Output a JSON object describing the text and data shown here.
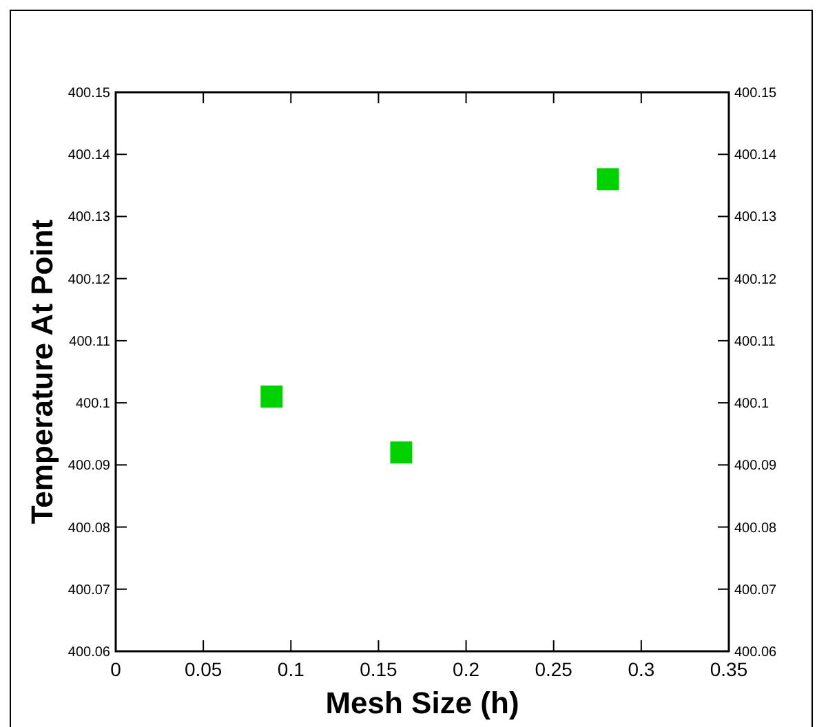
{
  "chart_data": {
    "type": "scatter",
    "xlabel": "Mesh Size (h)",
    "ylabel": "Temperature At Point",
    "x": [
      0.089,
      0.163,
      0.281
    ],
    "series": [
      {
        "color": "#00d200",
        "values": [
          400.101,
          400.092,
          400.136
        ]
      }
    ],
    "marker": "square",
    "grid": false,
    "xlim": [
      0,
      0.35
    ],
    "xticks": [
      0,
      0.05,
      0.1,
      0.15,
      0.2,
      0.25,
      0.3,
      0.35
    ],
    "ylim": [
      400.06,
      400.15
    ],
    "yticks": [
      400.06,
      400.07,
      400.08,
      400.09,
      400.1,
      400.11,
      400.12,
      400.13,
      400.14,
      400.15
    ],
    "y2lim": [
      400.06,
      400.15
    ],
    "y2ticks": [
      400.06,
      400.07,
      400.08,
      400.09,
      400.1,
      400.11,
      400.12,
      400.13,
      400.14,
      400.15
    ]
  }
}
